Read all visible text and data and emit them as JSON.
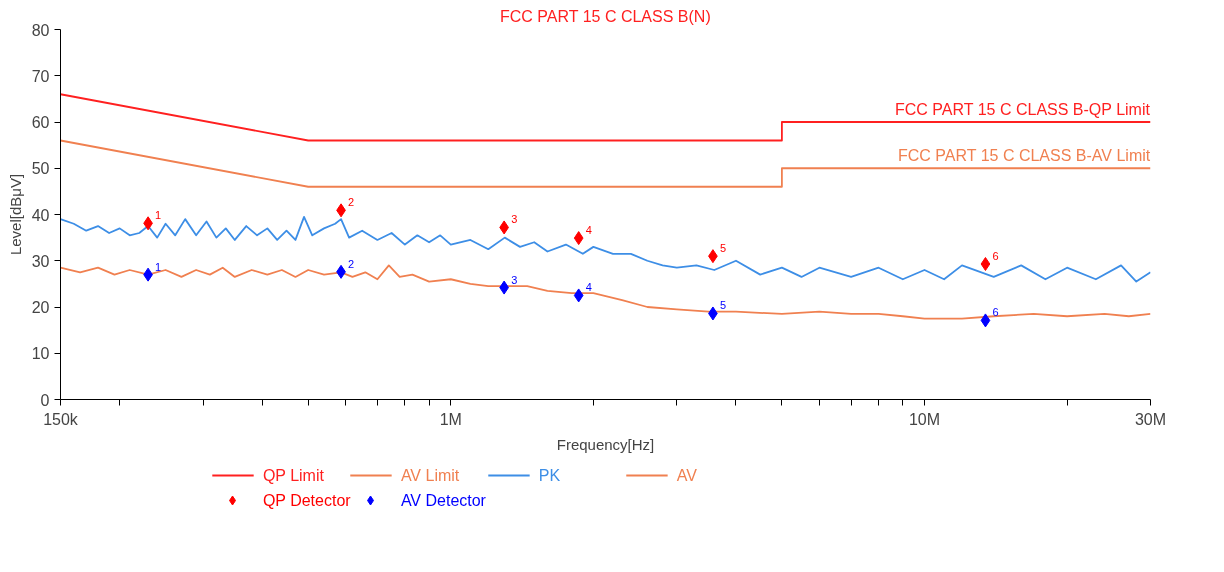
{
  "chart_data": {
    "type": "line",
    "title": "FCC PART 15 C CLASS B(N)",
    "xlabel": "Frequency[Hz]",
    "ylabel": "Level[dBμV]",
    "log": "x",
    "grid": false,
    "legend": "bottom",
    "line_style": "solid",
    "xlim": [
      150000,
      30000000
    ],
    "ylim": [
      0,
      80
    ],
    "yticks": [
      0,
      10,
      20,
      30,
      40,
      50,
      60,
      70,
      80
    ],
    "xticks": [
      {
        "value": 150000,
        "label": "150k"
      },
      {
        "value": 200000,
        "label": null
      },
      {
        "value": 300000,
        "label": null
      },
      {
        "value": 400000,
        "label": null
      },
      {
        "value": 500000,
        "label": null
      },
      {
        "value": 600000,
        "label": null
      },
      {
        "value": 700000,
        "label": null
      },
      {
        "value": 800000,
        "label": null
      },
      {
        "value": 900000,
        "label": null
      },
      {
        "value": 1000000,
        "label": "1M"
      },
      {
        "value": 2000000,
        "label": null
      },
      {
        "value": 3000000,
        "label": null
      },
      {
        "value": 4000000,
        "label": null
      },
      {
        "value": 5000000,
        "label": null
      },
      {
        "value": 6000000,
        "label": null
      },
      {
        "value": 7000000,
        "label": null
      },
      {
        "value": 8000000,
        "label": null
      },
      {
        "value": 9000000,
        "label": null
      },
      {
        "value": 10000000,
        "label": "10M"
      },
      {
        "value": 20000000,
        "label": null
      },
      {
        "value": 30000000,
        "label": "30M"
      }
    ],
    "series": [
      {
        "name": "QP Limit",
        "color": "#ff2020",
        "x": [
          150000,
          500000,
          5000000,
          5000000,
          30000000
        ],
        "values": [
          66,
          56,
          56,
          60,
          60
        ]
      },
      {
        "name": "AV Limit",
        "color": "#f08050",
        "x": [
          150000,
          500000,
          5000000,
          5000000,
          30000000
        ],
        "values": [
          56,
          46,
          46,
          50,
          50
        ]
      },
      {
        "name": "PK",
        "color": "#3d8ee6",
        "x": [
          150000,
          160000,
          170000,
          180000,
          190000,
          200000,
          210000,
          220000,
          229600,
          240000,
          250000,
          262000,
          275000,
          290000,
          305000,
          320000,
          335000,
          350000,
          370000,
          390000,
          410000,
          430000,
          450000,
          470000,
          490000,
          510000,
          540000,
          570000,
          586600,
          610000,
          650000,
          700000,
          750000,
          800000,
          850000,
          900000,
          950000,
          1000000,
          1100000,
          1200000,
          1300000,
          1400000,
          1500000,
          1600000,
          1750000,
          1900000,
          2000000,
          2200000,
          2400000,
          2600000,
          2800000,
          3000000,
          3300000,
          3600000,
          4000000,
          4500000,
          5000000,
          5500000,
          6000000,
          7000000,
          8000000,
          9000000,
          10000000,
          11000000,
          12000000,
          14000000,
          16000000,
          18000000,
          20000000,
          23000000,
          26000000,
          28000000,
          30000000
        ],
        "values": [
          39,
          38,
          36.5,
          37.5,
          36,
          37,
          35.5,
          36,
          37.5,
          35,
          38,
          35.5,
          39,
          35.5,
          38.5,
          35,
          37,
          34.5,
          37.5,
          35.5,
          37,
          34.5,
          36.5,
          34.5,
          39.5,
          35.5,
          37,
          38,
          39,
          35,
          36.5,
          34.5,
          36,
          33.5,
          35.5,
          34,
          35.5,
          33.5,
          34.5,
          32.5,
          35,
          33,
          34,
          32,
          33.5,
          31.5,
          33,
          31.5,
          31.5,
          30,
          29,
          28.5,
          29,
          28,
          30,
          27,
          28.5,
          26.5,
          28.5,
          26.5,
          28.5,
          26,
          28,
          26,
          29,
          26.5,
          29,
          26,
          28.5,
          26,
          29,
          25.5,
          27.5
        ]
      },
      {
        "name": "AV",
        "color": "#f08050",
        "x": [
          150000,
          165000,
          180000,
          195000,
          210000,
          229600,
          250000,
          270000,
          290000,
          310000,
          330000,
          350000,
          380000,
          410000,
          440000,
          470000,
          500000,
          540000,
          586600,
          620000,
          660000,
          700000,
          740000,
          780000,
          830000,
          900000,
          1000000,
          1100000,
          1200000,
          1300000,
          1450000,
          1600000,
          1800000,
          2000000,
          2300000,
          2600000,
          3000000,
          3500000,
          4000000,
          5000000,
          6000000,
          7000000,
          8000000,
          9000000,
          10000000,
          12000000,
          14000000,
          17000000,
          20000000,
          24000000,
          27000000,
          30000000
        ],
        "values": [
          28.5,
          27.5,
          28.5,
          27,
          28,
          27,
          28,
          26.5,
          28,
          27,
          28.5,
          26.5,
          28,
          27,
          28,
          26.5,
          28,
          27,
          27.5,
          26.5,
          27.5,
          26,
          29,
          26.5,
          27,
          25.5,
          26,
          25,
          24.5,
          24.5,
          24.5,
          23.5,
          23,
          23,
          21.5,
          20,
          19.5,
          19,
          19,
          18.5,
          19,
          18.5,
          18.5,
          18,
          17.5,
          17.5,
          18,
          18.5,
          18,
          18.5,
          18,
          18.5
        ]
      },
      {
        "name": "QP Detector",
        "type": "scatter",
        "marker": "diamond",
        "color": "#ff0000",
        "x": [
          229600,
          586600,
          1296000,
          1862000,
          3576000,
          13450000
        ],
        "values": [
          38.1,
          40.9,
          37.2,
          34.9,
          31.0,
          29.3
        ]
      },
      {
        "name": "AV Detector",
        "type": "scatter",
        "marker": "diamond",
        "color": "#0000ff",
        "x": [
          229600,
          586600,
          1296000,
          1862000,
          3576000,
          13450000
        ],
        "values": [
          27.0,
          27.6,
          24.2,
          22.5,
          18.6,
          17.1
        ]
      }
    ],
    "annotations": [
      {
        "text": "FCC PART 15 C CLASS B-QP Limit",
        "x": 30000000,
        "y": 60
      },
      {
        "text": "FCC PART 15 C CLASS B-AV Limit",
        "x": 30000000,
        "y": 50
      },
      {
        "text": "1",
        "x": 229600,
        "y": 38.1
      },
      {
        "text": "2",
        "x": 586600,
        "y": 40.9
      },
      {
        "text": "3",
        "x": 1296000,
        "y": 37.2
      },
      {
        "text": "4",
        "x": 1862000,
        "y": 34.9
      },
      {
        "text": "5",
        "x": 3576000,
        "y": 31.0
      },
      {
        "text": "6",
        "x": 13450000,
        "y": 29.3
      },
      {
        "text": "1",
        "x": 229600,
        "y": 27.0
      },
      {
        "text": "2",
        "x": 586600,
        "y": 27.6
      },
      {
        "text": "3",
        "x": 1296000,
        "y": 24.2
      },
      {
        "text": "4",
        "x": 1862000,
        "y": 22.5
      },
      {
        "text": "5",
        "x": 3576000,
        "y": 18.6
      },
      {
        "text": "6",
        "x": 13450000,
        "y": 17.1
      }
    ]
  }
}
